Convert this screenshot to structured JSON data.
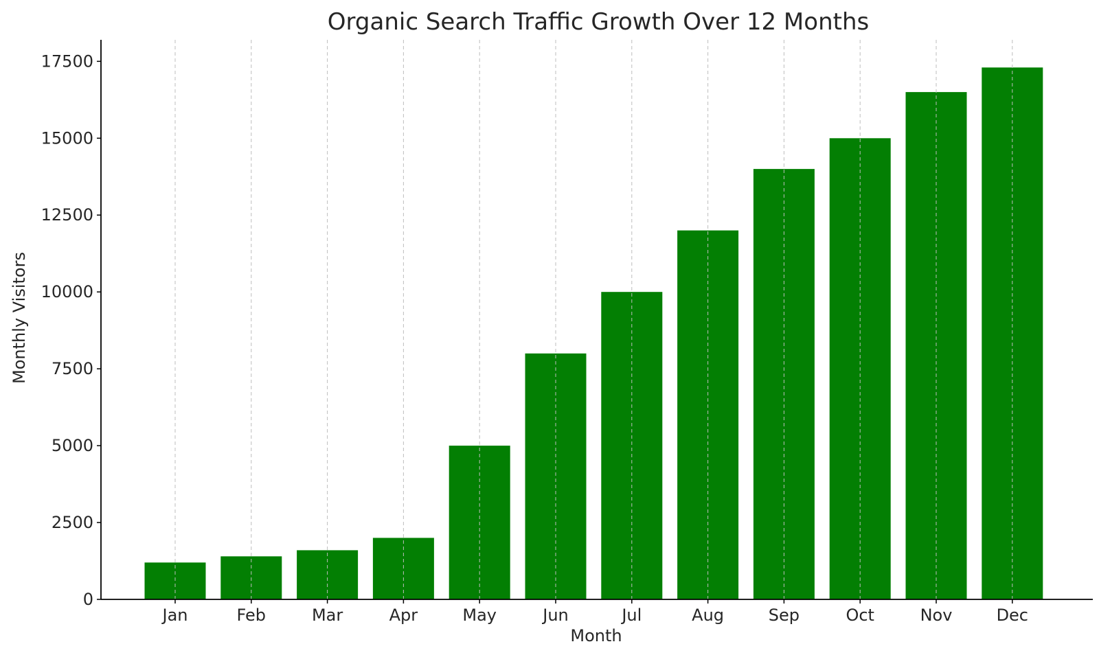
{
  "chart_data": {
    "type": "bar",
    "title": "Organic Search Traffic Growth Over 12 Months",
    "xlabel": "Month",
    "ylabel": "Monthly Visitors",
    "categories": [
      "Jan",
      "Feb",
      "Mar",
      "Apr",
      "May",
      "Jun",
      "Jul",
      "Aug",
      "Sep",
      "Oct",
      "Nov",
      "Dec"
    ],
    "values": [
      1200,
      1400,
      1600,
      2000,
      5000,
      8000,
      10000,
      12000,
      14000,
      15000,
      16500,
      17300
    ],
    "yticks": [
      0,
      2500,
      5000,
      7500,
      10000,
      12500,
      15000,
      17500
    ],
    "ylim": [
      0,
      18200
    ],
    "bar_color": "#037f03",
    "grid": "vertical dashed lines at each category"
  }
}
